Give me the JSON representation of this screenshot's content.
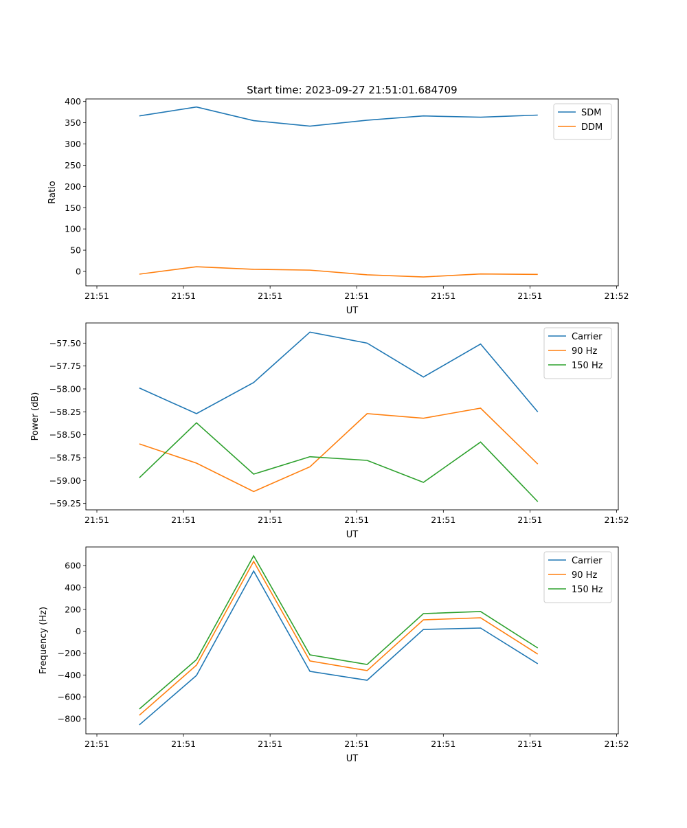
{
  "chart_data": [
    {
      "type": "line",
      "title": "Start time: 2023-09-27 21:51:01.684709",
      "xlabel": "UT",
      "ylabel": "Ratio",
      "x": [
        4.9,
        11.5,
        18.1,
        24.6,
        31.2,
        37.7,
        44.3,
        50.9
      ],
      "xlim": [
        -1.27,
        60.2
      ],
      "xticks": [
        0,
        10,
        20,
        30,
        40,
        50,
        60
      ],
      "xtick_labels": [
        "21:51",
        "21:51",
        "21:51",
        "21:51",
        "21:51",
        "21:51",
        "21:52"
      ],
      "ylim": [
        -34,
        406
      ],
      "yticks": [
        0,
        50,
        100,
        150,
        200,
        250,
        300,
        350,
        400
      ],
      "ytick_labels": [
        "0",
        "50",
        "100",
        "150",
        "200",
        "250",
        "300",
        "350",
        "400"
      ],
      "legend": "top-right",
      "series": [
        {
          "name": "SDM",
          "color": "#1f77b4",
          "values": [
            366,
            387,
            355,
            342,
            356,
            366,
            363,
            368
          ]
        },
        {
          "name": "DDM",
          "color": "#ff7f0e",
          "values": [
            -6.5,
            11,
            5,
            3,
            -8,
            -13,
            -6,
            -7
          ]
        }
      ]
    },
    {
      "type": "line",
      "title": "",
      "xlabel": "UT",
      "ylabel": "Power (dB)",
      "x": [
        4.9,
        11.5,
        18.1,
        24.6,
        31.2,
        37.7,
        44.3,
        50.9
      ],
      "xlim": [
        -1.27,
        60.2
      ],
      "xticks": [
        0,
        10,
        20,
        30,
        40,
        50,
        60
      ],
      "xtick_labels": [
        "21:51",
        "21:51",
        "21:51",
        "21:51",
        "21:51",
        "21:51",
        "21:52"
      ],
      "ylim": [
        -59.32,
        -57.28
      ],
      "yticks": [
        -57.5,
        -57.75,
        -58.0,
        -58.25,
        -58.5,
        -58.75,
        -59.0,
        -59.25
      ],
      "ytick_labels": [
        "−57.50",
        "−57.75",
        "−58.00",
        "−58.25",
        "−58.50",
        "−58.75",
        "−59.00",
        "−59.25"
      ],
      "legend": "top-right",
      "series": [
        {
          "name": "Carrier",
          "color": "#1f77b4",
          "values": [
            -57.99,
            -58.27,
            -57.93,
            -57.38,
            -57.5,
            -57.87,
            -57.51,
            -58.25
          ]
        },
        {
          "name": "90 Hz",
          "color": "#ff7f0e",
          "values": [
            -58.6,
            -58.81,
            -59.12,
            -58.85,
            -58.27,
            -58.32,
            -58.21,
            -58.82
          ]
        },
        {
          "name": "150 Hz",
          "color": "#2ca02c",
          "values": [
            -58.97,
            -58.37,
            -58.93,
            -58.74,
            -58.78,
            -59.02,
            -58.58,
            -59.23
          ]
        }
      ]
    },
    {
      "type": "line",
      "title": "",
      "xlabel": "UT",
      "ylabel": "Frequency (Hz)",
      "x": [
        4.9,
        11.5,
        18.1,
        24.6,
        31.2,
        37.7,
        44.3,
        50.9
      ],
      "xlim": [
        -1.27,
        60.2
      ],
      "xticks": [
        0,
        10,
        20,
        30,
        40,
        50,
        60
      ],
      "xtick_labels": [
        "21:51",
        "21:51",
        "21:51",
        "21:51",
        "21:51",
        "21:51",
        "21:52"
      ],
      "ylim": [
        -938,
        770
      ],
      "yticks": [
        -800,
        -600,
        -400,
        -200,
        0,
        200,
        400,
        600
      ],
      "ytick_labels": [
        "−800",
        "−600",
        "−400",
        "−200",
        "0",
        "200",
        "400",
        "600"
      ],
      "legend": "top-right",
      "series": [
        {
          "name": "Carrier",
          "color": "#1f77b4",
          "values": [
            -856,
            -404,
            550,
            -367,
            -448,
            16,
            29,
            -297
          ]
        },
        {
          "name": "90 Hz",
          "color": "#ff7f0e",
          "values": [
            -768,
            -310,
            638,
            -272,
            -360,
            104,
            123,
            -209
          ]
        },
        {
          "name": "150 Hz",
          "color": "#2ca02c",
          "values": [
            -711,
            -260,
            689,
            -216,
            -304,
            161,
            180,
            -153
          ]
        }
      ]
    }
  ]
}
